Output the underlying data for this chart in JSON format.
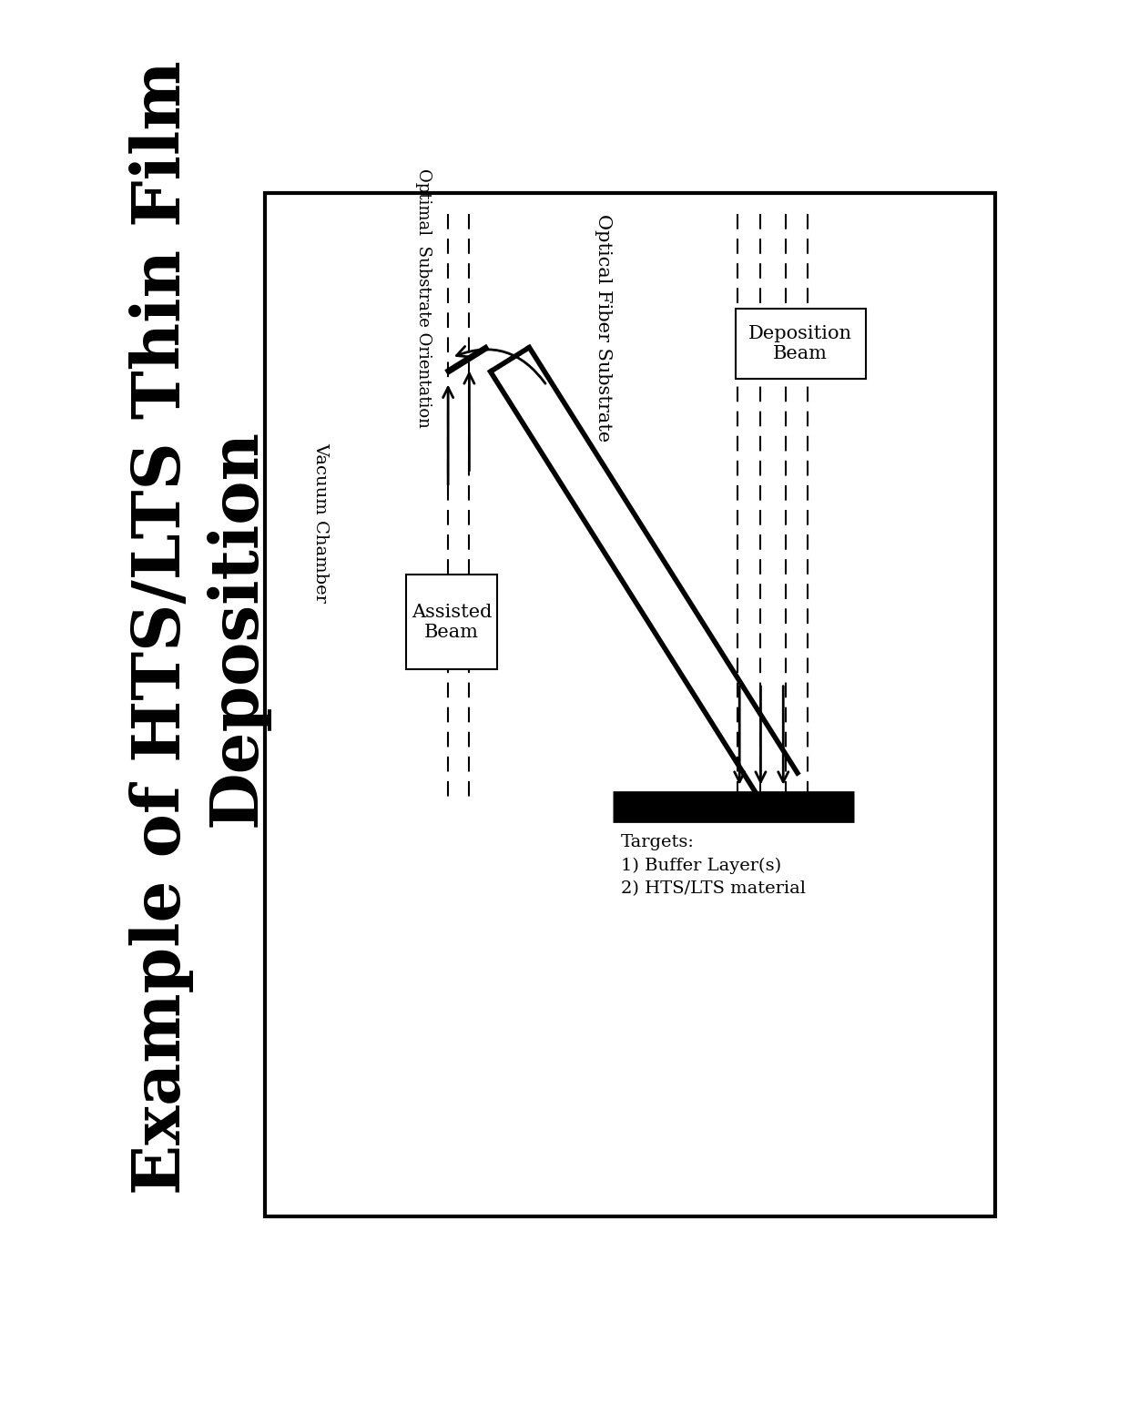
{
  "title_line1": "Example of HTS/LTS Thin Film",
  "title_line2": "Deposition",
  "title_fontsize": 52,
  "bg_color": "#ffffff",
  "label_vacuum": "Vacuum Chamber",
  "label_optical_fiber": "Optical Fiber Substrate",
  "label_optimal_substrate": "Optimal  Substrate Orientation",
  "label_deposition_beam": "Deposition\nBeam",
  "label_assisted_beam": "Assisted\nBeam",
  "label_targets": "Targets:\n1) Buffer Layer(s)\n2) HTS/LTS material"
}
